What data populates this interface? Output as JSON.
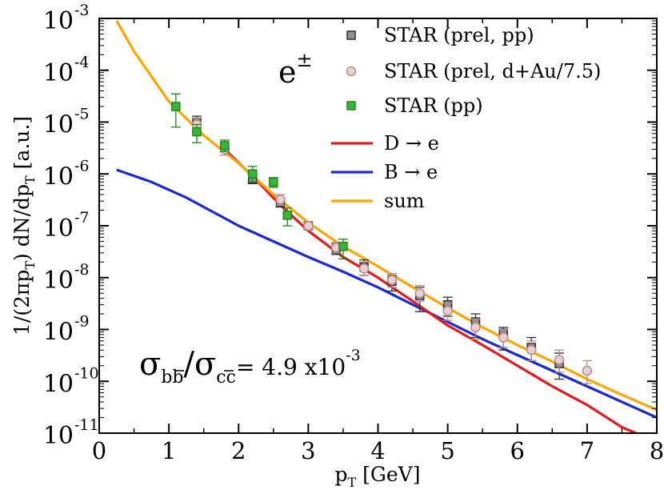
{
  "chart_data": {
    "type": "scatter",
    "xlabel": "p",
    "xlabel_sub": "T",
    "xlabel_unit": "[GeV]",
    "ylabel": "1/(2πp",
    "ylabel_sub1": "T",
    "ylabel_mid": ") dN/dp",
    "ylabel_sub2": "T",
    "ylabel_unit": "[a.u.]",
    "x_ticks": [
      "0",
      "1",
      "2",
      "3",
      "4",
      "5",
      "6",
      "7",
      "8"
    ],
    "xlim": [
      0,
      8
    ],
    "ylim": [
      1e-11,
      0.001
    ],
    "yscale": "log",
    "y_ticks": [
      {
        "base": "10",
        "exp": "-3"
      },
      {
        "base": "10",
        "exp": "-4"
      },
      {
        "base": "10",
        "exp": "-5"
      },
      {
        "base": "10",
        "exp": "-6"
      },
      {
        "base": "10",
        "exp": "-7"
      },
      {
        "base": "10",
        "exp": "-8"
      },
      {
        "base": "10",
        "exp": "-9"
      },
      {
        "base": "10",
        "exp": "-10"
      },
      {
        "base": "10",
        "exp": "-11"
      }
    ],
    "annotation": {
      "text": "e",
      "sup": "±"
    },
    "ratio": {
      "sigma": "σ",
      "sub_b": "bb",
      "slash": "/",
      "sub_c": "cc",
      "equals": "= 4.9 x10",
      "exp": "-3"
    },
    "legend_position": "top-right",
    "legend": [
      {
        "label": "STAR (prel, pp)",
        "kind": "marker"
      },
      {
        "label": "STAR (prel, d+Au/7.5)",
        "kind": "marker"
      },
      {
        "label": "STAR (pp)",
        "kind": "marker"
      },
      {
        "label": "D → e",
        "kind": "line"
      },
      {
        "label": "B → e",
        "kind": "line"
      },
      {
        "label": "sum",
        "kind": "line"
      }
    ],
    "series": [
      {
        "name": "STAR (prel, pp)",
        "kind": "scatter",
        "color": "#303030",
        "fill": "#909090",
        "points": [
          {
            "x": 1.4,
            "y": 1e-05,
            "lo": 6.5e-06,
            "hi": 1.3e-05
          },
          {
            "x": 2.2,
            "y": 8e-07,
            "lo": 6.5e-07,
            "hi": 1e-06
          },
          {
            "x": 2.6,
            "y": 2.8e-07,
            "lo": 2.3e-07,
            "hi": 3.4e-07
          },
          {
            "x": 3.0,
            "y": 1e-07,
            "lo": 8.5e-08,
            "hi": 1.2e-07
          },
          {
            "x": 3.4,
            "y": 3.5e-08,
            "lo": 2.8e-08,
            "hi": 4.5e-08
          },
          {
            "x": 3.8,
            "y": 1.6e-08,
            "lo": 1.1e-08,
            "hi": 2.2e-08
          },
          {
            "x": 4.2,
            "y": 8.5e-09,
            "lo": 5.5e-09,
            "hi": 1.1e-08
          },
          {
            "x": 4.6,
            "y": 4.5e-09,
            "lo": 2.2e-09,
            "hi": 6.5e-09
          },
          {
            "x": 5.0,
            "y": 3e-09,
            "lo": 1.8e-09,
            "hi": 4.2e-09
          },
          {
            "x": 5.4,
            "y": 1.4e-09,
            "lo": 7e-10,
            "hi": 2e-09
          },
          {
            "x": 5.8,
            "y": 8.5e-10,
            "lo": 4e-10,
            "hi": 1.1e-09
          },
          {
            "x": 6.2,
            "y": 4.5e-10,
            "lo": 2.5e-10,
            "hi": 7e-10
          },
          {
            "x": 6.6,
            "y": 2.2e-10,
            "lo": 1.1e-10,
            "hi": 3.5e-10
          }
        ]
      },
      {
        "name": "STAR (prel, d+Au/7.5)",
        "kind": "scatter",
        "color": "#b48c8c",
        "fill": "#e8d0d0",
        "points": [
          {
            "x": 1.4,
            "y": 9e-06,
            "lo": 6e-06,
            "hi": 1.2e-05
          },
          {
            "x": 1.8,
            "y": 3e-06,
            "lo": 2.3e-06,
            "hi": 3.8e-06
          },
          {
            "x": 2.6,
            "y": 3.2e-07,
            "lo": 2.5e-07,
            "hi": 4e-07
          },
          {
            "x": 3.0,
            "y": 1e-07,
            "lo": 8.5e-08,
            "hi": 1.2e-07
          },
          {
            "x": 3.4,
            "y": 3.8e-08,
            "lo": 3e-08,
            "hi": 4.8e-08
          },
          {
            "x": 3.8,
            "y": 1.5e-08,
            "lo": 1.1e-08,
            "hi": 2e-08
          },
          {
            "x": 4.2,
            "y": 9e-09,
            "lo": 6.5e-09,
            "hi": 1.2e-08
          },
          {
            "x": 4.6,
            "y": 5e-09,
            "lo": 3.5e-09,
            "hi": 7e-09
          },
          {
            "x": 5.0,
            "y": 2.3e-09,
            "lo": 1.5e-09,
            "hi": 3.2e-09
          },
          {
            "x": 5.4,
            "y": 1.1e-09,
            "lo": 6.5e-10,
            "hi": 1.6e-09
          },
          {
            "x": 5.8,
            "y": 7e-10,
            "lo": 4.5e-10,
            "hi": 1e-09
          },
          {
            "x": 6.2,
            "y": 4e-10,
            "lo": 2.5e-10,
            "hi": 6e-10
          },
          {
            "x": 6.6,
            "y": 2.6e-10,
            "lo": 1.5e-10,
            "hi": 4e-10
          },
          {
            "x": 7.0,
            "y": 1.6e-10,
            "lo": 9e-11,
            "hi": 2.5e-10
          }
        ]
      },
      {
        "name": "STAR (pp)",
        "kind": "scatter",
        "color": "#1a8a1a",
        "fill": "#3cb43c",
        "points": [
          {
            "x": 1.1,
            "y": 2e-05,
            "lo": 8e-06,
            "hi": 3.5e-05
          },
          {
            "x": 1.4,
            "y": 6.5e-06,
            "lo": 4e-06,
            "hi": 9e-06
          },
          {
            "x": 1.8,
            "y": 3.5e-06,
            "lo": 2.7e-06,
            "hi": 4.5e-06
          },
          {
            "x": 2.2,
            "y": 1e-06,
            "lo": 7e-07,
            "hi": 1.4e-06
          },
          {
            "x": 2.5,
            "y": 7e-07,
            "lo": 5.5e-07,
            "hi": 8.5e-07
          },
          {
            "x": 2.7,
            "y": 1.6e-07,
            "lo": 1e-07,
            "hi": 2.2e-07
          },
          {
            "x": 3.5,
            "y": 4e-08,
            "lo": 2.3e-08,
            "hi": 5.5e-08
          }
        ]
      },
      {
        "name": "D → e",
        "kind": "line",
        "color": "#e41a1c",
        "x": [
          1.8,
          2.2,
          2.6,
          3.0,
          3.5,
          4.0,
          4.5,
          5.0,
          5.5,
          6.0,
          6.5,
          7.0,
          7.5,
          7.7
        ],
        "y": [
          3e-06,
          9e-07,
          2.5e-07,
          8e-08,
          2.5e-08,
          1e-08,
          3.5e-09,
          1.2e-09,
          5e-10,
          2e-10,
          8e-11,
          3.5e-11,
          1.3e-11,
          1e-11
        ]
      },
      {
        "name": "B → e",
        "kind": "line",
        "color": "#1a2ad0",
        "x": [
          0.25,
          0.75,
          1.25,
          2.0,
          2.5,
          3.0,
          3.5,
          4.0,
          4.5,
          5.0,
          5.5,
          6.0,
          6.5,
          7.0,
          7.5,
          8.0
        ],
        "y": [
          1.2e-06,
          7e-07,
          3.5e-07,
          1e-07,
          5e-08,
          2.5e-08,
          1.3e-08,
          6.5e-09,
          3e-09,
          1.4e-09,
          6.5e-10,
          3.2e-10,
          1.6e-10,
          8e-11,
          4e-11,
          2e-11
        ]
      },
      {
        "name": "sum",
        "kind": "line",
        "color": "#ffa500",
        "x": [
          0.25,
          0.5,
          1.0,
          1.5,
          2.0,
          2.5,
          3.0,
          3.5,
          4.0,
          4.5,
          5.0,
          5.5,
          6.0,
          6.5,
          7.0,
          7.5,
          8.0
        ],
        "y": [
          0.0009,
          0.00023,
          2.5e-05,
          5.5e-06,
          1.6e-06,
          4e-07,
          1.15e-07,
          4e-08,
          1.65e-08,
          6.5e-09,
          2.6e-09,
          1.1e-09,
          5e-10,
          2.4e-10,
          1.1e-10,
          5.5e-11,
          2.8e-11
        ]
      }
    ]
  }
}
